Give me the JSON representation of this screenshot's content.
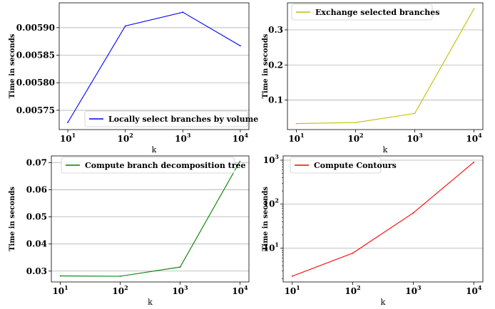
{
  "chart_data": [
    {
      "type": "line",
      "x": [
        10,
        100,
        1000,
        10000
      ],
      "x_ticks": [
        "10",
        "10",
        "10",
        "10"
      ],
      "x_tick_exponents": [
        "1",
        "2",
        "3",
        "4"
      ],
      "xscale": "log",
      "xlabel": "k",
      "ylabel": "Time in seconds",
      "ylim": [
        0.005715,
        0.005945
      ],
      "yticks": [
        0.00575,
        0.0058,
        0.00585,
        0.0059
      ],
      "ytick_labels": [
        "0.00575",
        "0.00580",
        "0.00585",
        "0.00590"
      ],
      "grid": "y",
      "legend_position": "lower-right",
      "series": [
        {
          "name": "Locally select branches by volume",
          "color": "#0000ff",
          "values": [
            0.005728,
            0.005903,
            0.005928,
            0.005867
          ]
        }
      ]
    },
    {
      "type": "line",
      "x": [
        10,
        100,
        1000,
        10000
      ],
      "x_ticks": [
        "10",
        "10",
        "10",
        "10"
      ],
      "x_tick_exponents": [
        "1",
        "2",
        "3",
        "4"
      ],
      "xscale": "log",
      "xlabel": "k",
      "ylabel": "Time in seconds",
      "ylim": [
        0.016,
        0.377
      ],
      "yticks": [
        0.1,
        0.2,
        0.3
      ],
      "ytick_labels": [
        "0.1",
        "0.2",
        "0.3"
      ],
      "grid": "y",
      "legend_position": "upper-left",
      "series": [
        {
          "name": "Exchange selected branches",
          "color": "#bfbf00",
          "values": [
            0.033,
            0.036,
            0.062,
            0.36
          ]
        }
      ]
    },
    {
      "type": "line",
      "x": [
        10,
        100,
        1000,
        10000
      ],
      "x_ticks": [
        "10",
        "10",
        "10",
        "10"
      ],
      "x_tick_exponents": [
        "1",
        "2",
        "3",
        "4"
      ],
      "xscale": "log",
      "xlabel": "k",
      "ylabel": "Time in seconds",
      "ylim": [
        0.026,
        0.0725
      ],
      "yticks": [
        0.03,
        0.04,
        0.05,
        0.06,
        0.07
      ],
      "ytick_labels": [
        "0.03",
        "0.04",
        "0.05",
        "0.06",
        "0.07"
      ],
      "grid": "y",
      "legend_position": "upper-left",
      "series": [
        {
          "name": "Compute branch decomposition tree",
          "color": "#008000",
          "values": [
            0.0282,
            0.0281,
            0.0315,
            0.0705
          ]
        }
      ]
    },
    {
      "type": "line",
      "x": [
        10,
        100,
        1000,
        10000
      ],
      "x_ticks": [
        "10",
        "10",
        "10",
        "10"
      ],
      "x_tick_exponents": [
        "1",
        "2",
        "3",
        "4"
      ],
      "xscale": "log",
      "yscale": "log",
      "xlabel": "k",
      "ylabel": "Time in seconds",
      "ylim": [
        1.7,
        1250
      ],
      "yticks": [
        10,
        100,
        1000
      ],
      "ytick_labels": [
        "10",
        "10",
        "10"
      ],
      "ytick_exponents": [
        "1",
        "2",
        "3"
      ],
      "grid": "y",
      "legend_position": "upper-left",
      "series": [
        {
          "name": "Compute Contours",
          "color": "#ff0000",
          "values": [
            2.3,
            7.7,
            63,
            900
          ]
        }
      ]
    }
  ]
}
